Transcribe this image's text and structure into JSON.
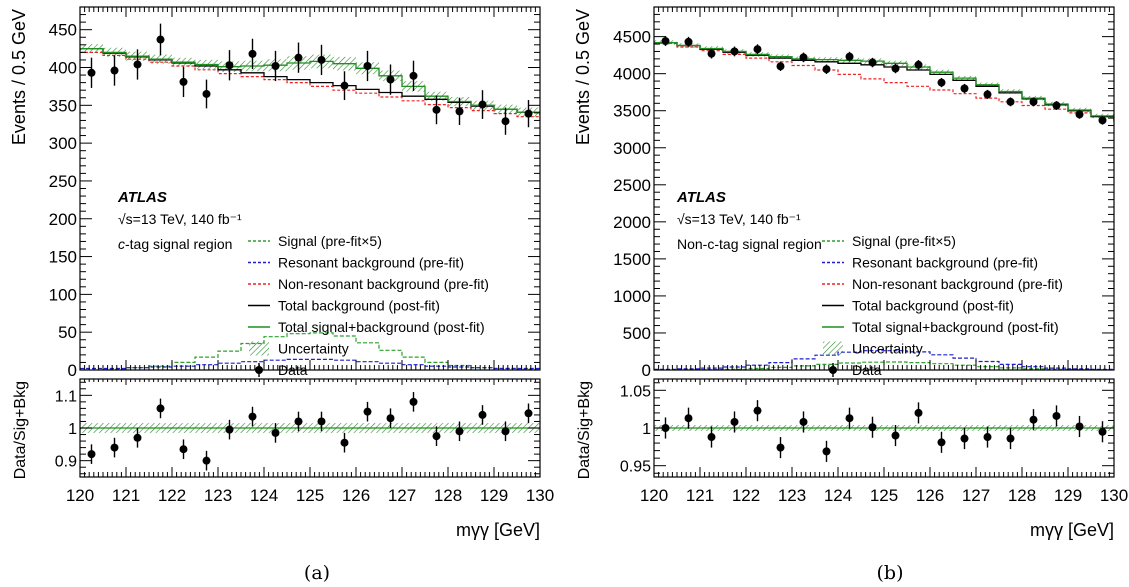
{
  "legend": {
    "signal": "Signal (pre-fit×5)",
    "resonant": "Resonant background (pre-fit)",
    "nonresonant": "Non-resonant background (pre-fit)",
    "totalbkg": "Total background (post-fit)",
    "totalsb": "Total signal+background (post-fit)",
    "uncertainty": "Uncertainty",
    "data": "Data"
  },
  "colors": {
    "signal": "#2ca02c",
    "resonant": "#1f1fcf",
    "nonresonant": "#ee2222",
    "totalbkg": "#000000",
    "totalsb": "#1f8f1f",
    "hatch": "#2e8b2e"
  },
  "chart_data": [
    {
      "type": "histogram-with-ratio",
      "caption": "(a)",
      "atlas_label": "ATLAS",
      "energy_label": "√s=13 TeV, 140 fb⁻¹",
      "region_prefix": "c",
      "region_suffix": "-tag signal region",
      "xlabel": "mγγ [GeV]",
      "ylabel": "Events / 0.5 GeV",
      "ratio_ylabel": "Data/Sig+Bkg",
      "xlim": [
        120,
        130
      ],
      "ylim": [
        0,
        480
      ],
      "ratio_ylim": [
        0.85,
        1.15
      ],
      "xticks": [
        120,
        121,
        122,
        123,
        124,
        125,
        126,
        127,
        128,
        129,
        130
      ],
      "yticks": [
        0,
        50,
        100,
        150,
        200,
        250,
        300,
        350,
        400,
        450
      ],
      "ratio_yticks": [
        0.9,
        1,
        1.1
      ],
      "ratio_yticklabels": [
        "0.9",
        "1",
        "1.1"
      ],
      "bin_edges": [
        120,
        120.5,
        121,
        121.5,
        122,
        122.5,
        123,
        123.5,
        124,
        124.5,
        125,
        125.5,
        126,
        126.5,
        127,
        127.5,
        128,
        128.5,
        129,
        129.5,
        130
      ],
      "data_x": [
        120.25,
        120.75,
        121.25,
        121.75,
        122.25,
        122.75,
        123.25,
        123.75,
        124.25,
        124.75,
        125.25,
        125.75,
        126.25,
        126.75,
        127.25,
        127.75,
        128.25,
        128.75,
        129.25,
        129.75
      ],
      "data_y": [
        393,
        396,
        404,
        437,
        381,
        365,
        403,
        418,
        402,
        413,
        410,
        376,
        402,
        384,
        389,
        344,
        342,
        351,
        329,
        339
      ],
      "data_err": [
        20,
        20,
        20,
        21,
        20,
        19,
        20,
        20,
        20,
        20,
        20,
        19,
        20,
        20,
        20,
        19,
        18,
        19,
        18,
        18
      ],
      "total_bkg": [
        425,
        419,
        414,
        410,
        406,
        402,
        397,
        393,
        388,
        384,
        380,
        376,
        371,
        367,
        362,
        358,
        354,
        349,
        345,
        341,
        337
      ],
      "total_sb": [
        425,
        420,
        415,
        411,
        407,
        404,
        401,
        402,
        403,
        406,
        408,
        405,
        399,
        389,
        375,
        362,
        355,
        350,
        345,
        341,
        337
      ],
      "sb_unc": [
        6,
        6,
        6,
        6,
        6,
        6,
        7,
        7,
        8,
        9,
        9,
        9,
        8,
        7,
        7,
        6,
        6,
        6,
        6,
        6,
        6
      ],
      "nonresonant": [
        420,
        416,
        411,
        407,
        402,
        397,
        392,
        388,
        384,
        380,
        375,
        370,
        366,
        361,
        356,
        351,
        347,
        343,
        339,
        335,
        331
      ],
      "signal_x5": [
        0,
        1,
        3,
        5,
        10,
        17,
        25,
        35,
        44,
        48,
        49,
        45,
        36,
        26,
        17,
        10,
        6,
        3,
        2,
        1,
        0
      ],
      "resonant": [
        2,
        2,
        3,
        4,
        5,
        7,
        9,
        11,
        13,
        14,
        14,
        13,
        11,
        9,
        7,
        5,
        4,
        3,
        2,
        2,
        1
      ],
      "ratio": [
        0.92,
        0.94,
        0.97,
        1.06,
        0.935,
        0.9,
        0.995,
        1.035,
        0.985,
        1.02,
        1.02,
        0.955,
        1.05,
        1.03,
        1.08,
        0.975,
        0.99,
        1.04,
        0.99,
        1.045
      ],
      "ratio_err": [
        0.03,
        0.03,
        0.03,
        0.03,
        0.03,
        0.03,
        0.03,
        0.03,
        0.03,
        0.03,
        0.03,
        0.03,
        0.03,
        0.03,
        0.03,
        0.03,
        0.03,
        0.03,
        0.03,
        0.03
      ],
      "ratio_unc": 0.015
    },
    {
      "type": "histogram-with-ratio",
      "caption": "(b)",
      "atlas_label": "ATLAS",
      "energy_label": "√s=13 TeV, 140 fb⁻¹",
      "region_prefix": "Non-c",
      "region_suffix": "-tag signal region",
      "xlabel": "mγγ [GeV]",
      "ylabel": "Events / 0.5 GeV",
      "ratio_ylabel": "Data/Sig+Bkg",
      "xlim": [
        120,
        130
      ],
      "ylim": [
        0,
        4900
      ],
      "ratio_ylim": [
        0.935,
        1.065
      ],
      "xticks": [
        120,
        121,
        122,
        123,
        124,
        125,
        126,
        127,
        128,
        129,
        130
      ],
      "yticks": [
        0,
        500,
        1000,
        1500,
        2000,
        2500,
        3000,
        3500,
        4000,
        4500
      ],
      "ratio_yticks": [
        0.95,
        1,
        1.05
      ],
      "ratio_yticklabels": [
        "0.95",
        "1",
        "1.05"
      ],
      "bin_edges": [
        120,
        120.5,
        121,
        121.5,
        122,
        122.5,
        123,
        123.5,
        124,
        124.5,
        125,
        125.5,
        126,
        126.5,
        127,
        127.5,
        128,
        128.5,
        129,
        129.5,
        130
      ],
      "data_x": [
        120.25,
        120.75,
        121.25,
        121.75,
        122.25,
        122.75,
        123.25,
        123.75,
        124.25,
        124.75,
        125.25,
        125.75,
        126.25,
        126.75,
        127.25,
        127.75,
        128.25,
        128.75,
        129.25,
        129.75
      ],
      "data_y": [
        4440,
        4430,
        4270,
        4300,
        4330,
        4100,
        4220,
        4060,
        4230,
        4150,
        4070,
        4120,
        3880,
        3800,
        3720,
        3620,
        3620,
        3570,
        3450,
        3370
      ],
      "data_err": [
        67,
        67,
        65,
        66,
        66,
        64,
        65,
        64,
        65,
        64,
        64,
        64,
        62,
        62,
        61,
        60,
        60,
        60,
        59,
        58
      ],
      "total_bkg": [
        4420,
        4380,
        4330,
        4290,
        4250,
        4210,
        4180,
        4160,
        4140,
        4120,
        4090,
        4050,
        3990,
        3910,
        3830,
        3740,
        3660,
        3580,
        3500,
        3420,
        3350
      ],
      "total_sb": [
        4420,
        4380,
        4340,
        4300,
        4260,
        4230,
        4200,
        4190,
        4180,
        4170,
        4140,
        4090,
        4020,
        3940,
        3850,
        3760,
        3670,
        3590,
        3510,
        3430,
        3360
      ],
      "sb_unc": [
        30,
        30,
        30,
        30,
        30,
        30,
        30,
        32,
        34,
        35,
        35,
        34,
        32,
        30,
        30,
        30,
        30,
        30,
        30,
        30,
        30
      ],
      "nonresonant": [
        4410,
        4360,
        4310,
        4260,
        4210,
        4160,
        4110,
        4050,
        3990,
        3930,
        3880,
        3830,
        3780,
        3730,
        3670,
        3620,
        3570,
        3520,
        3470,
        3420,
        3370
      ],
      "signal_x5": [
        0,
        2,
        5,
        10,
        20,
        35,
        55,
        75,
        95,
        105,
        108,
        100,
        85,
        65,
        45,
        28,
        15,
        8,
        4,
        2,
        0
      ],
      "resonant": [
        10,
        15,
        25,
        40,
        65,
        100,
        150,
        200,
        240,
        260,
        260,
        245,
        205,
        160,
        115,
        75,
        45,
        25,
        15,
        10,
        5
      ],
      "ratio": [
        1.0,
        1.013,
        0.988,
        1.008,
        1.023,
        0.974,
        1.008,
        0.969,
        1.013,
        1.001,
        0.99,
        1.02,
        0.981,
        0.986,
        0.988,
        0.986,
        1.011,
        1.016,
        1.002,
        0.995
      ],
      "ratio_err": [
        0.014,
        0.014,
        0.014,
        0.014,
        0.014,
        0.014,
        0.014,
        0.014,
        0.014,
        0.014,
        0.014,
        0.014,
        0.014,
        0.014,
        0.014,
        0.014,
        0.014,
        0.014,
        0.014,
        0.014
      ],
      "ratio_unc": 0.004
    }
  ]
}
